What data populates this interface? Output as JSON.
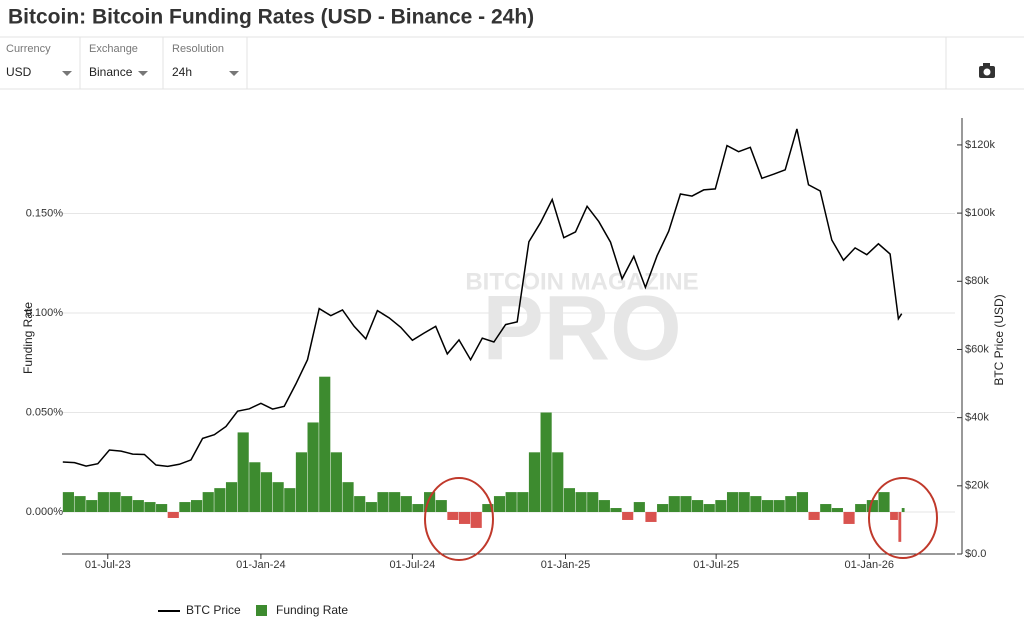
{
  "header": {
    "title": "Bitcoin: Bitcoin Funding Rates (USD - Binance - 24h)"
  },
  "controls": [
    {
      "label": "Currency",
      "value": "USD"
    },
    {
      "label": "Exchange",
      "value": "Binance"
    },
    {
      "label": "Resolution",
      "value": "24h"
    }
  ],
  "watermark": [
    "BITCOIN MAGAZINE",
    "PRO"
  ],
  "chart_data": {
    "type": "combo",
    "ylabel": "Funding Rate",
    "y2label": "BTC Price (USD)",
    "x": [
      "2023-05-08",
      "2023-05-22",
      "2023-06-05",
      "2023-06-19",
      "2023-07-03",
      "2023-07-17",
      "2023-07-31",
      "2023-08-14",
      "2023-08-28",
      "2023-09-11",
      "2023-09-25",
      "2023-10-09",
      "2023-10-23",
      "2023-11-06",
      "2023-11-20",
      "2023-12-04",
      "2023-12-18",
      "2024-01-01",
      "2024-01-15",
      "2024-01-29",
      "2024-02-12",
      "2024-02-26",
      "2024-03-11",
      "2024-03-25",
      "2024-04-08",
      "2024-04-22",
      "2024-05-06",
      "2024-05-20",
      "2024-06-03",
      "2024-06-17",
      "2024-07-01",
      "2024-07-15",
      "2024-07-29",
      "2024-08-12",
      "2024-08-26",
      "2024-09-09",
      "2024-09-23",
      "2024-10-07",
      "2024-10-21",
      "2024-11-04",
      "2024-11-18",
      "2024-12-02",
      "2024-12-16",
      "2024-12-30",
      "2025-01-13",
      "2025-01-27",
      "2025-02-10",
      "2025-02-24",
      "2025-03-10",
      "2025-03-24",
      "2025-04-07",
      "2025-04-21",
      "2025-05-05",
      "2025-05-19",
      "2025-06-02",
      "2025-06-16",
      "2025-06-30",
      "2025-07-14",
      "2025-07-28",
      "2025-08-11",
      "2025-08-25",
      "2025-09-08",
      "2025-09-22",
      "2025-10-06",
      "2025-10-20",
      "2025-11-03",
      "2025-11-17",
      "2025-12-01",
      "2025-12-15",
      "2025-12-29",
      "2026-01-12",
      "2026-01-26",
      "2026-02-05",
      "2026-02-09"
    ],
    "series": [
      {
        "name": "BTC Price",
        "type": "line",
        "axis": "y2",
        "color": "#000000",
        "values": [
          27000,
          26800,
          25800,
          26500,
          30500,
          30200,
          29300,
          29200,
          26100,
          25700,
          26300,
          27600,
          33900,
          35000,
          37400,
          41900,
          42600,
          44200,
          42500,
          43300,
          49900,
          57000,
          72000,
          69900,
          71600,
          66800,
          63100,
          71400,
          69300,
          66500,
          62700,
          64800,
          66800,
          58700,
          62800,
          57000,
          63300,
          62200,
          67300,
          68100,
          91600,
          97200,
          104000,
          92800,
          94500,
          102000,
          97500,
          91500,
          80700,
          87300,
          78200,
          87500,
          94700,
          105600,
          105000,
          106800,
          107100,
          119800,
          118000,
          119300,
          110200,
          111400,
          112700,
          124700,
          108300,
          106500,
          92100,
          86200,
          89800,
          87800,
          91000,
          88000,
          69000,
          70500
        ]
      },
      {
        "name": "Funding Rate",
        "type": "bar",
        "color": "#3d8b2f",
        "negative_color": "#d9534f",
        "values": [
          0.01,
          0.008,
          0.006,
          0.01,
          0.01,
          0.008,
          0.006,
          0.005,
          0.004,
          -0.003,
          0.005,
          0.006,
          0.01,
          0.012,
          0.015,
          0.04,
          0.025,
          0.02,
          0.015,
          0.012,
          0.03,
          0.045,
          0.068,
          0.03,
          0.015,
          0.008,
          0.005,
          0.01,
          0.01,
          0.008,
          0.004,
          0.01,
          0.006,
          -0.004,
          -0.006,
          -0.008,
          0.004,
          0.008,
          0.01,
          0.01,
          0.03,
          0.05,
          0.03,
          0.012,
          0.01,
          0.01,
          0.006,
          0.002,
          -0.004,
          0.005,
          -0.005,
          0.004,
          0.008,
          0.008,
          0.006,
          0.004,
          0.006,
          0.01,
          0.01,
          0.008,
          0.006,
          0.006,
          0.008,
          0.01,
          -0.004,
          0.004,
          0.002,
          -0.006,
          0.004,
          0.006,
          0.01,
          -0.004,
          -0.015,
          0.002
        ]
      }
    ],
    "xlim": [
      "2023-05-07",
      "2026-04-14"
    ],
    "xticks": [
      {
        "value": "2023-07-01",
        "label": "01-Jul-23"
      },
      {
        "value": "2024-01-01",
        "label": "01-Jan-24"
      },
      {
        "value": "2024-07-01",
        "label": "01-Jul-24"
      },
      {
        "value": "2025-01-01",
        "label": "01-Jan-25"
      },
      {
        "value": "2025-07-01",
        "label": "01-Jul-25"
      },
      {
        "value": "2026-01-01",
        "label": "01-Jan-26"
      }
    ],
    "ylim": [
      -0.0211,
      0.198
    ],
    "yticks": [
      {
        "value": 0,
        "label": "0.000%"
      },
      {
        "value": 0.05,
        "label": "0.050%"
      },
      {
        "value": 0.1,
        "label": "0.100%"
      },
      {
        "value": 0.15,
        "label": "0.150%"
      }
    ],
    "y2lim": [
      0,
      127900
    ],
    "y2ticks": [
      {
        "value": 0,
        "label": "$0.0"
      },
      {
        "value": 20000,
        "label": "$20k"
      },
      {
        "value": 40000,
        "label": "$40k"
      },
      {
        "value": 60000,
        "label": "$60k"
      },
      {
        "value": 80000,
        "label": "$80k"
      },
      {
        "value": 100000,
        "label": "$100k"
      },
      {
        "value": 120000,
        "label": "$120k"
      }
    ],
    "grid": true
  }
}
